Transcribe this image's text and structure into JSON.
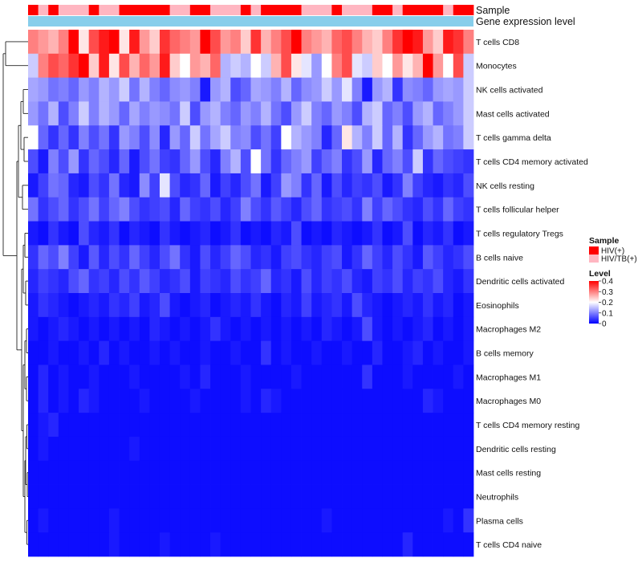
{
  "chart_data": {
    "type": "heatmap",
    "annotation_rows": [
      "Sample",
      "Gene expression level"
    ],
    "row_labels": [
      "T cells CD8",
      "Monocytes",
      "NK cells activated",
      "Mast cells activated",
      "T cells gamma delta",
      "T cells CD4 memory activated",
      "NK cells resting",
      "T cells follicular helper",
      "T cells regulatory  Tregs",
      "B cells naive",
      "Dendritic cells activated",
      "Eosinophils",
      "Macrophages M2",
      "B cells memory",
      "Macrophages M1",
      "Macrophages M0",
      "T cells CD4 memory resting",
      "Dendritic cells resting",
      "Mast cells resting",
      "Neutrophils",
      "Plasma cells",
      "T cells CD4 naive"
    ],
    "n_columns": 44,
    "sample_groups": [
      "HIV(+)",
      "HIV/TB(+)",
      "HIV(+)",
      "HIV/TB(+)",
      "HIV/TB(+)",
      "HIV/TB(+)",
      "HIV(+)",
      "HIV/TB(+)",
      "HIV/TB(+)",
      "HIV(+)",
      "HIV(+)",
      "HIV(+)",
      "HIV(+)",
      "HIV(+)",
      "HIV/TB(+)",
      "HIV/TB(+)",
      "HIV(+)",
      "HIV(+)",
      "HIV/TB(+)",
      "HIV/TB(+)",
      "HIV/TB(+)",
      "HIV(+)",
      "HIV/TB(+)",
      "HIV(+)",
      "HIV(+)",
      "HIV(+)",
      "HIV(+)",
      "HIV/TB(+)",
      "HIV/TB(+)",
      "HIV/TB(+)",
      "HIV(+)",
      "HIV/TB(+)",
      "HIV/TB(+)",
      "HIV/TB(+)",
      "HIV(+)",
      "HIV(+)",
      "HIV/TB(+)",
      "HIV(+)",
      "HIV(+)",
      "HIV(+)",
      "HIV(+)",
      "HIV/TB(+)",
      "HIV(+)",
      "HIV(+)"
    ],
    "values": [
      [
        0.3,
        0.28,
        0.26,
        0.3,
        0.4,
        0.22,
        0.34,
        0.38,
        0.4,
        0.22,
        0.38,
        0.28,
        0.24,
        0.36,
        0.32,
        0.3,
        0.28,
        0.4,
        0.34,
        0.28,
        0.3,
        0.24,
        0.36,
        0.26,
        0.3,
        0.34,
        0.4,
        0.3,
        0.28,
        0.26,
        0.32,
        0.34,
        0.3,
        0.26,
        0.24,
        0.3,
        0.36,
        0.4,
        0.38,
        0.28,
        0.24,
        0.38,
        0.36,
        0.3
      ],
      [
        0.16,
        0.3,
        0.34,
        0.32,
        0.36,
        0.42,
        0.24,
        0.38,
        0.22,
        0.34,
        0.26,
        0.32,
        0.28,
        0.38,
        0.24,
        0.2,
        0.28,
        0.26,
        0.32,
        0.14,
        0.16,
        0.14,
        0.2,
        0.16,
        0.26,
        0.34,
        0.22,
        0.18,
        0.12,
        0.2,
        0.3,
        0.34,
        0.18,
        0.16,
        0.24,
        0.2,
        0.28,
        0.22,
        0.26,
        0.4,
        0.28,
        0.2,
        0.34,
        0.16
      ],
      [
        0.13,
        0.12,
        0.09,
        0.1,
        0.08,
        0.12,
        0.1,
        0.14,
        0.12,
        0.16,
        0.09,
        0.14,
        0.1,
        0.08,
        0.11,
        0.12,
        0.1,
        0.02,
        0.12,
        0.14,
        0.06,
        0.08,
        0.13,
        0.12,
        0.1,
        0.14,
        0.08,
        0.11,
        0.12,
        0.16,
        0.12,
        0.18,
        0.1,
        0.02,
        0.12,
        0.14,
        0.04,
        0.11,
        0.1,
        0.08,
        0.12,
        0.13,
        0.12,
        0.16
      ],
      [
        0.12,
        0.09,
        0.14,
        0.06,
        0.1,
        0.16,
        0.1,
        0.14,
        0.12,
        0.08,
        0.13,
        0.1,
        0.12,
        0.11,
        0.09,
        0.16,
        0.06,
        0.12,
        0.14,
        0.1,
        0.08,
        0.12,
        0.1,
        0.14,
        0.09,
        0.06,
        0.12,
        0.16,
        0.1,
        0.08,
        0.12,
        0.1,
        0.06,
        0.14,
        0.16,
        0.08,
        0.1,
        0.06,
        0.12,
        0.14,
        0.08,
        0.1,
        0.12,
        0.16
      ],
      [
        0.2,
        0.08,
        0.04,
        0.08,
        0.04,
        0.1,
        0.06,
        0.09,
        0.04,
        0.12,
        0.1,
        0.06,
        0.11,
        0.03,
        0.12,
        0.08,
        0.16,
        0.09,
        0.13,
        0.16,
        0.1,
        0.11,
        0.06,
        0.09,
        0.05,
        0.2,
        0.14,
        0.12,
        0.1,
        0.03,
        0.08,
        0.22,
        0.14,
        0.1,
        0.16,
        0.08,
        0.14,
        0.04,
        0.08,
        0.12,
        0.14,
        0.09,
        0.1,
        0.16
      ],
      [
        0.06,
        0.02,
        0.1,
        0.06,
        0.12,
        0.04,
        0.08,
        0.06,
        0.03,
        0.08,
        0.02,
        0.06,
        0.09,
        0.05,
        0.04,
        0.08,
        0.12,
        0.06,
        0.03,
        0.1,
        0.14,
        0.06,
        0.2,
        0.09,
        0.04,
        0.08,
        0.1,
        0.12,
        0.05,
        0.08,
        0.1,
        0.04,
        0.06,
        0.12,
        0.03,
        0.08,
        0.1,
        0.06,
        0.16,
        0.04,
        0.08,
        0.06,
        0.05,
        0.04
      ],
      [
        0.02,
        0.05,
        0.09,
        0.08,
        0.03,
        0.02,
        0.06,
        0.04,
        0.09,
        0.03,
        0.02,
        0.11,
        0.05,
        0.18,
        0.06,
        0.03,
        0.04,
        0.08,
        0.02,
        0.05,
        0.03,
        0.06,
        0.09,
        0.02,
        0.05,
        0.12,
        0.1,
        0.04,
        0.08,
        0.02,
        0.06,
        0.03,
        0.05,
        0.04,
        0.06,
        0.02,
        0.04,
        0.1,
        0.05,
        0.03,
        0.02,
        0.04,
        0.03,
        0.06
      ],
      [
        0.09,
        0.04,
        0.06,
        0.08,
        0.04,
        0.06,
        0.09,
        0.05,
        0.08,
        0.1,
        0.06,
        0.04,
        0.05,
        0.06,
        0.03,
        0.08,
        0.05,
        0.04,
        0.06,
        0.03,
        0.05,
        0.1,
        0.06,
        0.04,
        0.07,
        0.05,
        0.03,
        0.06,
        0.08,
        0.04,
        0.05,
        0.06,
        0.04,
        0.1,
        0.05,
        0.08,
        0.06,
        0.04,
        0.03,
        0.06,
        0.04,
        0.08,
        0.05,
        0.04
      ],
      [
        0.02,
        0.01,
        0.04,
        0.02,
        0.01,
        0.06,
        0.03,
        0.02,
        0.04,
        0.01,
        0.03,
        0.02,
        0.01,
        0.04,
        0.02,
        0.01,
        0.02,
        0.03,
        0.01,
        0.02,
        0.04,
        0.01,
        0.02,
        0.01,
        0.03,
        0.02,
        0.06,
        0.01,
        0.02,
        0.01,
        0.03,
        0.02,
        0.01,
        0.02,
        0.04,
        0.01,
        0.02,
        0.06,
        0.01,
        0.03,
        0.02,
        0.04,
        0.01,
        0.02
      ],
      [
        0.04,
        0.08,
        0.06,
        0.1,
        0.05,
        0.02,
        0.07,
        0.03,
        0.06,
        0.04,
        0.08,
        0.05,
        0.03,
        0.06,
        0.09,
        0.04,
        0.02,
        0.06,
        0.03,
        0.05,
        0.08,
        0.06,
        0.03,
        0.04,
        0.02,
        0.05,
        0.06,
        0.04,
        0.03,
        0.05,
        0.06,
        0.02,
        0.04,
        0.08,
        0.05,
        0.03,
        0.06,
        0.04,
        0.02,
        0.07,
        0.05,
        0.03,
        0.04,
        0.06
      ],
      [
        0.03,
        0.05,
        0.04,
        0.03,
        0.06,
        0.08,
        0.04,
        0.05,
        0.03,
        0.06,
        0.04,
        0.07,
        0.05,
        0.03,
        0.04,
        0.06,
        0.02,
        0.05,
        0.04,
        0.03,
        0.06,
        0.04,
        0.05,
        0.08,
        0.03,
        0.04,
        0.02,
        0.06,
        0.03,
        0.05,
        0.04,
        0.06,
        0.03,
        0.02,
        0.05,
        0.04,
        0.06,
        0.03,
        0.05,
        0.04,
        0.06,
        0.03,
        0.02,
        0.04
      ],
      [
        0.02,
        0.04,
        0.03,
        0.02,
        0.01,
        0.02,
        0.03,
        0.02,
        0.04,
        0.03,
        0.05,
        0.02,
        0.03,
        0.06,
        0.02,
        0.01,
        0.02,
        0.03,
        0.01,
        0.02,
        0.03,
        0.02,
        0.04,
        0.02,
        0.01,
        0.03,
        0.02,
        0.05,
        0.02,
        0.03,
        0.04,
        0.02,
        0.06,
        0.03,
        0.02,
        0.01,
        0.02,
        0.03,
        0.02,
        0.04,
        0.02,
        0.03,
        0.01,
        0.02
      ],
      [
        0.02,
        0.01,
        0.02,
        0.03,
        0.02,
        0.01,
        0.02,
        0.01,
        0.02,
        0.01,
        0.02,
        0.01,
        0.03,
        0.02,
        0.01,
        0.02,
        0.01,
        0.02,
        0.04,
        0.02,
        0.01,
        0.02,
        0.01,
        0.02,
        0.01,
        0.02,
        0.01,
        0.02,
        0.01,
        0.03,
        0.02,
        0.01,
        0.02,
        0.06,
        0.02,
        0.01,
        0.02,
        0.01,
        0.02,
        0.03,
        0.01,
        0.02,
        0.01,
        0.02
      ],
      [
        0.01,
        0.01,
        0.02,
        0.01,
        0.01,
        0.02,
        0.01,
        0.03,
        0.01,
        0.02,
        0.01,
        0.01,
        0.02,
        0.01,
        0.02,
        0.01,
        0.01,
        0.02,
        0.01,
        0.01,
        0.02,
        0.01,
        0.01,
        0.04,
        0.01,
        0.02,
        0.01,
        0.01,
        0.02,
        0.01,
        0.01,
        0.02,
        0.01,
        0.01,
        0.03,
        0.01,
        0.01,
        0.02,
        0.03,
        0.01,
        0.02,
        0.01,
        0.01,
        0.02
      ],
      [
        0.01,
        0.03,
        0.01,
        0.02,
        0.01,
        0.01,
        0.02,
        0.01,
        0.01,
        0.01,
        0.02,
        0.01,
        0.01,
        0.01,
        0.01,
        0.02,
        0.01,
        0.03,
        0.01,
        0.01,
        0.01,
        0.02,
        0.01,
        0.01,
        0.01,
        0.01,
        0.02,
        0.01,
        0.01,
        0.01,
        0.01,
        0.01,
        0.01,
        0.04,
        0.01,
        0.01,
        0.01,
        0.02,
        0.01,
        0.01,
        0.01,
        0.01,
        0.02,
        0.01
      ],
      [
        0.01,
        0.03,
        0.01,
        0.02,
        0.01,
        0.03,
        0.02,
        0.01,
        0.01,
        0.01,
        0.01,
        0.02,
        0.01,
        0.01,
        0.01,
        0.01,
        0.02,
        0.01,
        0.01,
        0.01,
        0.01,
        0.02,
        0.01,
        0.03,
        0.02,
        0.01,
        0.01,
        0.01,
        0.01,
        0.01,
        0.01,
        0.01,
        0.01,
        0.01,
        0.01,
        0.01,
        0.01,
        0.01,
        0.01,
        0.03,
        0.02,
        0.01,
        0.01,
        0.01
      ],
      [
        0.01,
        0.02,
        0.03,
        0.01,
        0.01,
        0.01,
        0.01,
        0.01,
        0.01,
        0.01,
        0.01,
        0.01,
        0.01,
        0.01,
        0.01,
        0.01,
        0.01,
        0.01,
        0.01,
        0.01,
        0.01,
        0.01,
        0.01,
        0.01,
        0.01,
        0.01,
        0.01,
        0.01,
        0.01,
        0.01,
        0.01,
        0.01,
        0.01,
        0.01,
        0.01,
        0.01,
        0.01,
        0.01,
        0.01,
        0.01,
        0.01,
        0.01,
        0.01,
        0.01
      ],
      [
        0.01,
        0.02,
        0.01,
        0.01,
        0.01,
        0.01,
        0.01,
        0.01,
        0.01,
        0.01,
        0.02,
        0.01,
        0.01,
        0.01,
        0.01,
        0.01,
        0.01,
        0.01,
        0.01,
        0.01,
        0.01,
        0.01,
        0.01,
        0.01,
        0.01,
        0.01,
        0.01,
        0.01,
        0.01,
        0.01,
        0.01,
        0.01,
        0.01,
        0.01,
        0.01,
        0.01,
        0.01,
        0.01,
        0.01,
        0.01,
        0.01,
        0.01,
        0.01,
        0.01
      ],
      [
        0.01,
        0.01,
        0.01,
        0.01,
        0.01,
        0.01,
        0.01,
        0.01,
        0.01,
        0.01,
        0.01,
        0.01,
        0.01,
        0.01,
        0.01,
        0.01,
        0.01,
        0.01,
        0.01,
        0.01,
        0.01,
        0.01,
        0.01,
        0.01,
        0.01,
        0.01,
        0.01,
        0.01,
        0.01,
        0.01,
        0.01,
        0.01,
        0.01,
        0.01,
        0.01,
        0.01,
        0.01,
        0.01,
        0.01,
        0.01,
        0.01,
        0.01,
        0.01,
        0.01
      ],
      [
        0.01,
        0.01,
        0.01,
        0.01,
        0.01,
        0.01,
        0.01,
        0.01,
        0.01,
        0.01,
        0.01,
        0.01,
        0.01,
        0.01,
        0.01,
        0.01,
        0.01,
        0.01,
        0.01,
        0.01,
        0.01,
        0.01,
        0.01,
        0.01,
        0.01,
        0.01,
        0.01,
        0.01,
        0.01,
        0.01,
        0.01,
        0.01,
        0.01,
        0.01,
        0.01,
        0.01,
        0.01,
        0.01,
        0.01,
        0.01,
        0.01,
        0.01,
        0.01,
        0.01
      ],
      [
        0.01,
        0.02,
        0.01,
        0.01,
        0.01,
        0.01,
        0.01,
        0.01,
        0.02,
        0.01,
        0.01,
        0.01,
        0.01,
        0.01,
        0.01,
        0.01,
        0.01,
        0.01,
        0.01,
        0.01,
        0.01,
        0.01,
        0.01,
        0.01,
        0.01,
        0.01,
        0.01,
        0.01,
        0.01,
        0.02,
        0.01,
        0.01,
        0.01,
        0.01,
        0.01,
        0.01,
        0.01,
        0.01,
        0.01,
        0.01,
        0.01,
        0.02,
        0.01,
        0.04
      ],
      [
        0.01,
        0.01,
        0.01,
        0.01,
        0.01,
        0.01,
        0.01,
        0.01,
        0.02,
        0.01,
        0.01,
        0.01,
        0.01,
        0.02,
        0.01,
        0.01,
        0.01,
        0.01,
        0.02,
        0.01,
        0.01,
        0.01,
        0.01,
        0.01,
        0.01,
        0.01,
        0.01,
        0.01,
        0.01,
        0.01,
        0.01,
        0.01,
        0.01,
        0.01,
        0.01,
        0.01,
        0.01,
        0.03,
        0.01,
        0.01,
        0.01,
        0.01,
        0.01,
        0.01
      ]
    ],
    "color_scale": {
      "low": "#0000FF",
      "mid": "#FFFFFF",
      "high": "#FF0000",
      "domain": [
        0,
        0.2,
        0.4
      ]
    },
    "sample_colors": {
      "HIV(+)": "#FF0000",
      "HIV/TB(+)": "#FFB6C1"
    },
    "expression_bar_color": "#87CEEB",
    "legend": {
      "sample_title": "Sample",
      "sample_entries": [
        "HIV(+)",
        "HIV/TB(+)"
      ],
      "level_title": "Level",
      "level_ticks": [
        0.4,
        0.3,
        0.2,
        0.1,
        0
      ],
      "level_tick_labels": [
        "0.4",
        "0.3",
        "0.2",
        "0.1",
        "0"
      ]
    }
  }
}
